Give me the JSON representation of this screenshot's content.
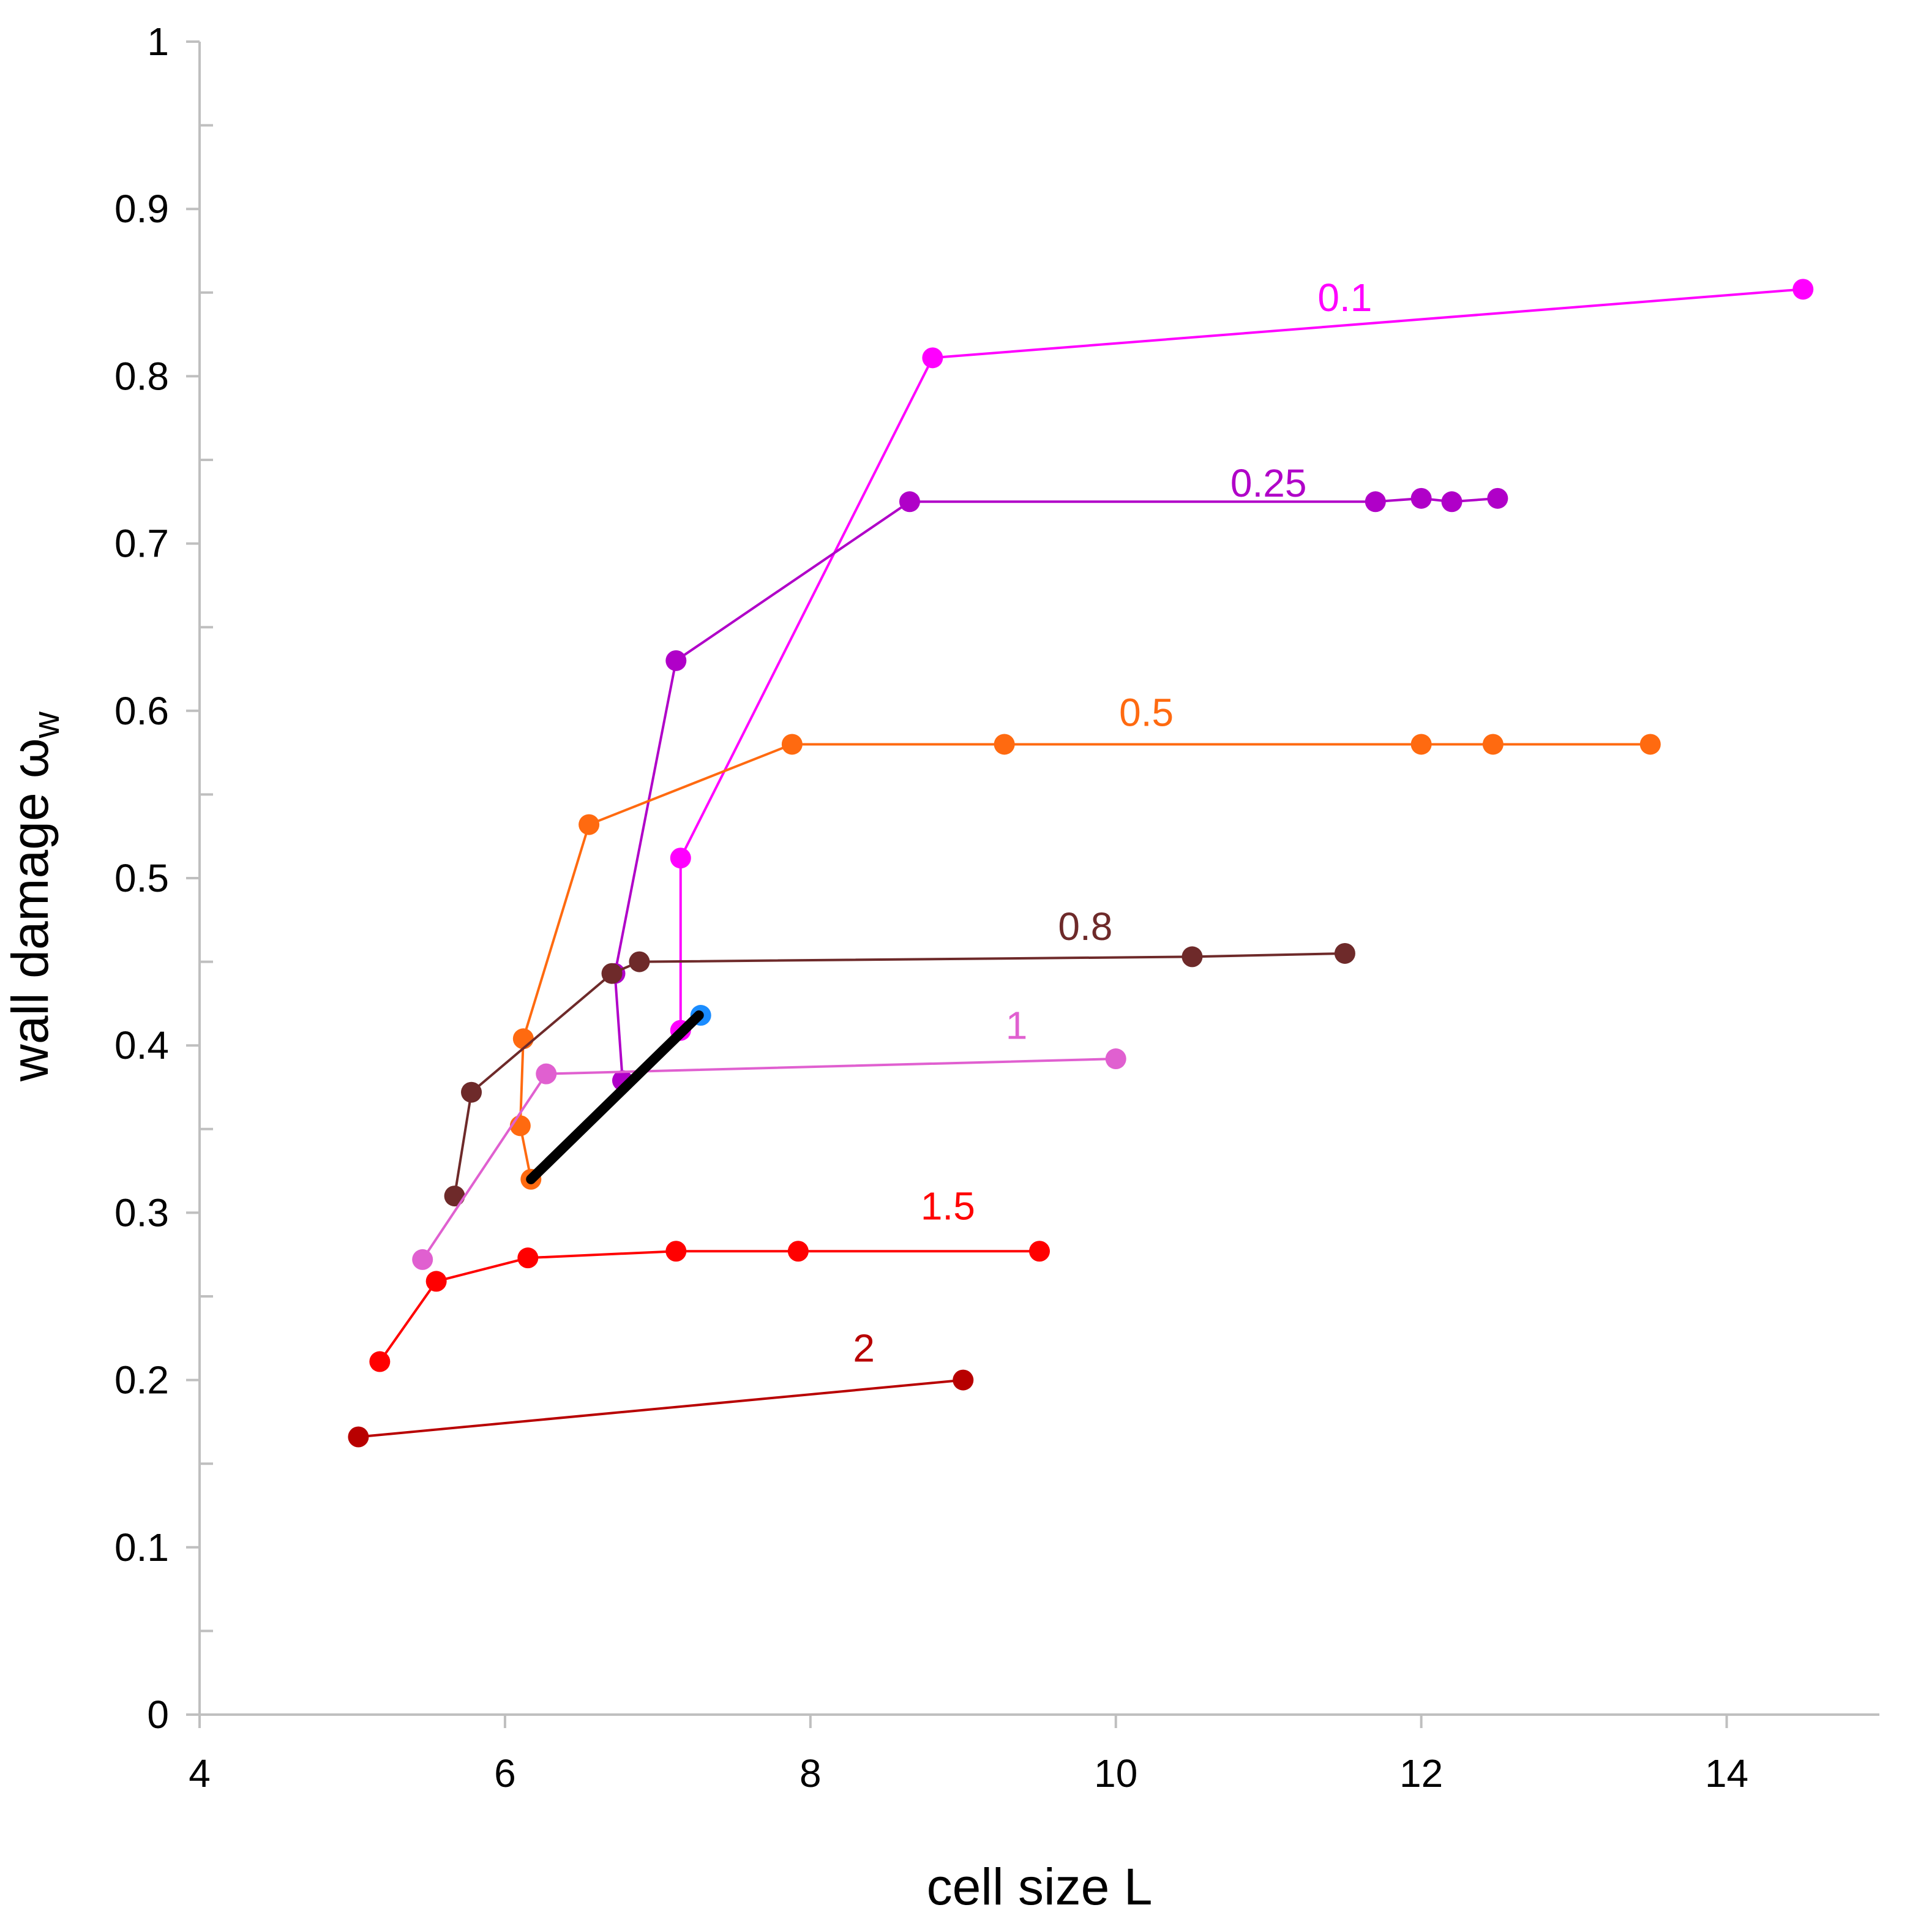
{
  "chart_data": {
    "type": "scatter",
    "title": "",
    "xlabel": "cell size L",
    "ylabel_main": "wall damage ω",
    "ylabel_sub": "w",
    "xlim": [
      4,
      15
    ],
    "ylim": [
      0,
      1
    ],
    "x_ticks": [
      4,
      6,
      8,
      10,
      12,
      14
    ],
    "y_ticks": [
      0,
      0.1,
      0.2,
      0.3,
      0.4,
      0.5,
      0.6,
      0.7,
      0.8,
      0.9,
      1
    ],
    "x_tick_labels": [
      "4",
      "6",
      "8",
      "10",
      "12",
      "14"
    ],
    "y_tick_labels": [
      "0",
      "0.1",
      "0.2",
      "0.3",
      "0.4",
      "0.5",
      "0.6",
      "0.7",
      "0.8",
      "0.9",
      "1"
    ],
    "grid": false,
    "series": [
      {
        "name": "0.1",
        "color": "#ff00ff",
        "points": [
          [
            7.15,
            0.409
          ],
          [
            7.15,
            0.512
          ],
          [
            8.8,
            0.811
          ],
          [
            14.5,
            0.852
          ]
        ],
        "label_at": [
          11.5,
          0.839
        ]
      },
      {
        "name": "0.25",
        "color": "#b000c8",
        "points": [
          [
            6.77,
            0.379
          ],
          [
            6.72,
            0.443
          ],
          [
            7.12,
            0.63
          ],
          [
            8.65,
            0.725
          ],
          [
            11.7,
            0.725
          ],
          [
            12.0,
            0.727
          ],
          [
            12.2,
            0.725
          ],
          [
            12.5,
            0.727
          ]
        ],
        "label_at": [
          11.0,
          0.728
        ]
      },
      {
        "name": "0.5",
        "color": "#ff6a10",
        "points": [
          [
            6.17,
            0.32
          ],
          [
            6.1,
            0.352
          ],
          [
            6.12,
            0.404
          ],
          [
            6.55,
            0.532
          ],
          [
            7.88,
            0.58
          ],
          [
            9.27,
            0.58
          ],
          [
            12.0,
            0.58
          ],
          [
            12.47,
            0.58
          ],
          [
            13.5,
            0.58
          ]
        ],
        "label_at": [
          10.2,
          0.591
        ]
      },
      {
        "name": "0.8",
        "color": "#6e2a2a",
        "points": [
          [
            5.67,
            0.31
          ],
          [
            5.78,
            0.372
          ],
          [
            6.7,
            0.443
          ],
          [
            6.88,
            0.45
          ],
          [
            10.5,
            0.453
          ],
          [
            11.5,
            0.455
          ]
        ],
        "label_at": [
          9.8,
          0.463
        ]
      },
      {
        "name": "1",
        "color": "#e060d0",
        "points": [
          [
            5.46,
            0.272
          ],
          [
            6.27,
            0.383
          ],
          [
            10.0,
            0.392
          ]
        ],
        "label_at": [
          9.35,
          0.404
        ]
      },
      {
        "name": "1.5",
        "color": "#ff0000",
        "points": [
          [
            5.18,
            0.211
          ],
          [
            5.55,
            0.259
          ],
          [
            6.15,
            0.273
          ],
          [
            7.12,
            0.277
          ],
          [
            7.92,
            0.277
          ],
          [
            9.5,
            0.277
          ]
        ],
        "label_at": [
          8.9,
          0.296
        ]
      },
      {
        "name": "2",
        "color": "#b80000",
        "points": [
          [
            5.04,
            0.166
          ],
          [
            9.0,
            0.2
          ]
        ],
        "label_at": [
          8.35,
          0.211
        ]
      },
      {
        "name": "",
        "color": "#000000",
        "bold": true,
        "points": [
          [
            6.17,
            0.32
          ],
          [
            7.27,
            0.418
          ]
        ],
        "marker_end_color": "#1a8cff"
      }
    ]
  }
}
